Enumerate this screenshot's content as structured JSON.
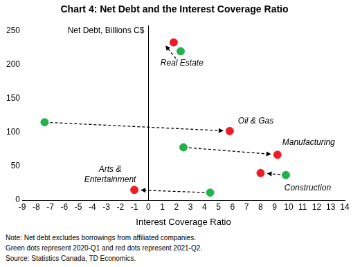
{
  "chart_data": {
    "type": "scatter",
    "title": "Chart 4: Net Debt and the Interest Coverage Ratio",
    "x_label": "Interest Coverage Ratio",
    "y_label": "Net Debt, Billions C$",
    "labels": [
      [
        "Real Estate"
      ],
      [
        "Oil & Gas"
      ],
      [
        "Manufacturing"
      ],
      [
        "Construction"
      ],
      [
        "Arts &",
        "Entertainment"
      ]
    ],
    "series": [
      {
        "color": "#21b24b",
        "marker": "circle",
        "x": [
          2.3,
          -7.4,
          2.5,
          9.8,
          4.4
        ],
        "values": [
          220,
          115,
          78,
          37,
          11
        ]
      },
      {
        "color": "#ee1c25",
        "marker": "circle",
        "x": [
          1.8,
          5.8,
          9.2,
          8.0,
          -1.0
        ],
        "values": [
          233,
          102,
          67,
          40,
          15
        ]
      }
    ],
    "xlim": [
      -9,
      14
    ],
    "xticks": [
      -9,
      -8,
      -7,
      -6,
      -5,
      -4,
      -3,
      -2,
      -1,
      0,
      1,
      2,
      3,
      4,
      5,
      6,
      7,
      8,
      9,
      10,
      11,
      12,
      13,
      14
    ],
    "ylim": [
      0,
      250
    ],
    "yticks": [
      0,
      50,
      100,
      150,
      200,
      250
    ],
    "grid": false,
    "notes": [
      "Note: Net debt excludes borrowings from affiliated companies.",
      "Green dots represent 2020-Q1 and red dots represent 2021-Q2.",
      "Source: Statistics Canada, TD Economics."
    ]
  }
}
